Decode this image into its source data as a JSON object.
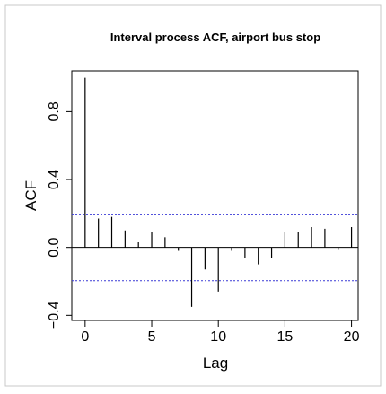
{
  "chart_data": {
    "type": "bar",
    "title": "Interval process ACF, airport bus stop",
    "xlabel": "Lag",
    "ylabel": "ACF",
    "xlim": [
      -1,
      20.5
    ],
    "ylim": [
      -0.43,
      1.04
    ],
    "x_ticks": [
      0,
      5,
      10,
      15,
      20
    ],
    "x_tick_labels": [
      "0",
      "5",
      "10",
      "15",
      "20"
    ],
    "y_ticks": [
      -0.4,
      0.0,
      0.4,
      0.8
    ],
    "y_tick_labels": [
      "−0.4",
      "0.0",
      "0.4",
      "0.8"
    ],
    "confidence_bound": 0.196,
    "confidence_color": "#3a3ad6",
    "lags": [
      0,
      1,
      2,
      3,
      4,
      5,
      6,
      7,
      8,
      9,
      10,
      11,
      12,
      13,
      14,
      15,
      16,
      17,
      18,
      19,
      20
    ],
    "values": [
      1.0,
      0.17,
      0.18,
      0.1,
      0.03,
      0.09,
      0.06,
      -0.02,
      -0.35,
      -0.13,
      -0.26,
      -0.02,
      -0.06,
      -0.1,
      -0.06,
      0.09,
      0.09,
      0.12,
      0.11,
      -0.01,
      0.12
    ],
    "grid": false,
    "zero_line": true
  }
}
